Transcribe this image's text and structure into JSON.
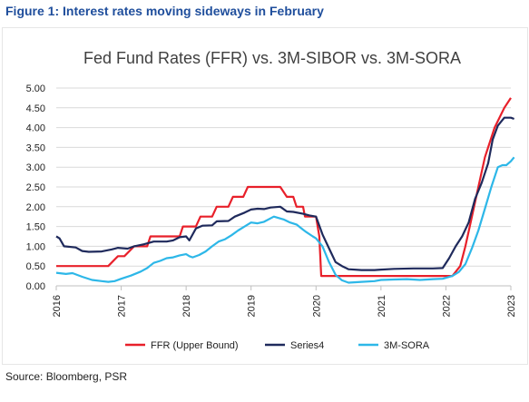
{
  "figure_title": "Figure 1: Interest rates moving sideways in February",
  "source": "Source: Bloomberg, PSR",
  "chart_data": {
    "type": "line",
    "title": "Fed Fund Rates (FFR) vs. 3M-SIBOR vs. 3M-SORA",
    "xlabel": "",
    "ylabel": "",
    "xlim": [
      2016,
      2023
    ],
    "ylim": [
      0,
      5
    ],
    "yticks": [
      "0.00",
      "0.50",
      "1.00",
      "1.50",
      "2.00",
      "2.50",
      "3.00",
      "3.50",
      "4.00",
      "4.50",
      "5.00"
    ],
    "ytick_values": [
      0,
      0.5,
      1,
      1.5,
      2,
      2.5,
      3,
      3.5,
      4,
      4.5,
      5
    ],
    "xticks": [
      "2016",
      "2017",
      "2018",
      "2019",
      "2020",
      "2021",
      "2022",
      "2023"
    ],
    "xtick_values": [
      2016,
      2017,
      2018,
      2019,
      2020,
      2021,
      2022,
      2023
    ],
    "grid": "horizontal",
    "legend_position": "bottom",
    "series": [
      {
        "name": "FFR (Upper Bound)",
        "color": "#e8202a",
        "points": [
          [
            2016.0,
            0.5
          ],
          [
            2016.8,
            0.5
          ],
          [
            2016.95,
            0.75
          ],
          [
            2017.05,
            0.75
          ],
          [
            2017.2,
            1.0
          ],
          [
            2017.4,
            1.0
          ],
          [
            2017.45,
            1.25
          ],
          [
            2017.9,
            1.25
          ],
          [
            2017.95,
            1.5
          ],
          [
            2018.15,
            1.5
          ],
          [
            2018.22,
            1.75
          ],
          [
            2018.4,
            1.75
          ],
          [
            2018.47,
            2.0
          ],
          [
            2018.65,
            2.0
          ],
          [
            2018.72,
            2.25
          ],
          [
            2018.88,
            2.25
          ],
          [
            2018.95,
            2.5
          ],
          [
            2019.45,
            2.5
          ],
          [
            2019.55,
            2.25
          ],
          [
            2019.65,
            2.25
          ],
          [
            2019.7,
            2.0
          ],
          [
            2019.8,
            2.0
          ],
          [
            2019.83,
            1.75
          ],
          [
            2020.0,
            1.75
          ],
          [
            2020.05,
            1.25
          ],
          [
            2020.08,
            0.25
          ],
          [
            2021.9,
            0.25
          ],
          [
            2022.1,
            0.25
          ],
          [
            2022.22,
            0.5
          ],
          [
            2022.3,
            1.0
          ],
          [
            2022.4,
            1.75
          ],
          [
            2022.5,
            2.5
          ],
          [
            2022.6,
            3.25
          ],
          [
            2022.75,
            4.0
          ],
          [
            2022.9,
            4.5
          ],
          [
            2023.0,
            4.75
          ]
        ]
      },
      {
        "name": "Series4",
        "color": "#1f2a5c",
        "points": [
          [
            2016.0,
            1.25
          ],
          [
            2016.05,
            1.2
          ],
          [
            2016.12,
            1.0
          ],
          [
            2016.3,
            0.97
          ],
          [
            2016.4,
            0.88
          ],
          [
            2016.5,
            0.86
          ],
          [
            2016.7,
            0.87
          ],
          [
            2016.85,
            0.92
          ],
          [
            2016.95,
            0.96
          ],
          [
            2017.1,
            0.94
          ],
          [
            2017.2,
            1.0
          ],
          [
            2017.35,
            1.05
          ],
          [
            2017.5,
            1.12
          ],
          [
            2017.7,
            1.12
          ],
          [
            2017.8,
            1.15
          ],
          [
            2017.9,
            1.23
          ],
          [
            2018.0,
            1.25
          ],
          [
            2018.05,
            1.15
          ],
          [
            2018.15,
            1.45
          ],
          [
            2018.25,
            1.52
          ],
          [
            2018.4,
            1.53
          ],
          [
            2018.47,
            1.63
          ],
          [
            2018.65,
            1.64
          ],
          [
            2018.75,
            1.75
          ],
          [
            2018.9,
            1.85
          ],
          [
            2019.0,
            1.93
          ],
          [
            2019.1,
            1.95
          ],
          [
            2019.2,
            1.94
          ],
          [
            2019.3,
            1.98
          ],
          [
            2019.45,
            2.0
          ],
          [
            2019.55,
            1.88
          ],
          [
            2019.65,
            1.87
          ],
          [
            2019.8,
            1.82
          ],
          [
            2019.9,
            1.78
          ],
          [
            2020.0,
            1.75
          ],
          [
            2020.1,
            1.3
          ],
          [
            2020.2,
            0.95
          ],
          [
            2020.3,
            0.6
          ],
          [
            2020.4,
            0.5
          ],
          [
            2020.5,
            0.42
          ],
          [
            2020.7,
            0.4
          ],
          [
            2020.9,
            0.4
          ],
          [
            2021.0,
            0.41
          ],
          [
            2021.2,
            0.43
          ],
          [
            2021.5,
            0.44
          ],
          [
            2021.8,
            0.44
          ],
          [
            2021.95,
            0.45
          ],
          [
            2022.05,
            0.7
          ],
          [
            2022.15,
            1.0
          ],
          [
            2022.25,
            1.25
          ],
          [
            2022.35,
            1.6
          ],
          [
            2022.45,
            2.2
          ],
          [
            2022.55,
            2.6
          ],
          [
            2022.65,
            3.1
          ],
          [
            2022.72,
            3.7
          ],
          [
            2022.8,
            4.05
          ],
          [
            2022.9,
            4.25
          ],
          [
            2023.0,
            4.25
          ],
          [
            2023.05,
            4.22
          ]
        ]
      },
      {
        "name": "3M-SORA",
        "color": "#2db7e8",
        "points": [
          [
            2016.0,
            0.33
          ],
          [
            2016.15,
            0.3
          ],
          [
            2016.25,
            0.32
          ],
          [
            2016.4,
            0.23
          ],
          [
            2016.55,
            0.15
          ],
          [
            2016.7,
            0.12
          ],
          [
            2016.8,
            0.1
          ],
          [
            2016.9,
            0.12
          ],
          [
            2017.0,
            0.18
          ],
          [
            2017.15,
            0.26
          ],
          [
            2017.3,
            0.36
          ],
          [
            2017.4,
            0.45
          ],
          [
            2017.5,
            0.58
          ],
          [
            2017.6,
            0.63
          ],
          [
            2017.7,
            0.7
          ],
          [
            2017.8,
            0.72
          ],
          [
            2017.9,
            0.77
          ],
          [
            2018.0,
            0.8
          ],
          [
            2018.05,
            0.75
          ],
          [
            2018.1,
            0.72
          ],
          [
            2018.2,
            0.78
          ],
          [
            2018.3,
            0.87
          ],
          [
            2018.4,
            1.0
          ],
          [
            2018.5,
            1.12
          ],
          [
            2018.6,
            1.18
          ],
          [
            2018.7,
            1.28
          ],
          [
            2018.8,
            1.4
          ],
          [
            2018.9,
            1.5
          ],
          [
            2019.0,
            1.6
          ],
          [
            2019.1,
            1.58
          ],
          [
            2019.2,
            1.62
          ],
          [
            2019.35,
            1.75
          ],
          [
            2019.5,
            1.68
          ],
          [
            2019.6,
            1.6
          ],
          [
            2019.7,
            1.55
          ],
          [
            2019.8,
            1.42
          ],
          [
            2019.85,
            1.36
          ],
          [
            2019.95,
            1.25
          ],
          [
            2020.0,
            1.2
          ],
          [
            2020.1,
            1.0
          ],
          [
            2020.2,
            0.6
          ],
          [
            2020.3,
            0.28
          ],
          [
            2020.4,
            0.14
          ],
          [
            2020.5,
            0.08
          ],
          [
            2020.7,
            0.1
          ],
          [
            2020.9,
            0.12
          ],
          [
            2021.0,
            0.15
          ],
          [
            2021.2,
            0.16
          ],
          [
            2021.4,
            0.17
          ],
          [
            2021.6,
            0.15
          ],
          [
            2021.8,
            0.17
          ],
          [
            2021.95,
            0.18
          ],
          [
            2022.1,
            0.25
          ],
          [
            2022.2,
            0.35
          ],
          [
            2022.3,
            0.55
          ],
          [
            2022.4,
            0.95
          ],
          [
            2022.5,
            1.4
          ],
          [
            2022.6,
            1.95
          ],
          [
            2022.7,
            2.5
          ],
          [
            2022.8,
            3.0
          ],
          [
            2022.87,
            3.05
          ],
          [
            2022.93,
            3.05
          ],
          [
            2023.0,
            3.15
          ],
          [
            2023.05,
            3.25
          ]
        ]
      }
    ]
  }
}
